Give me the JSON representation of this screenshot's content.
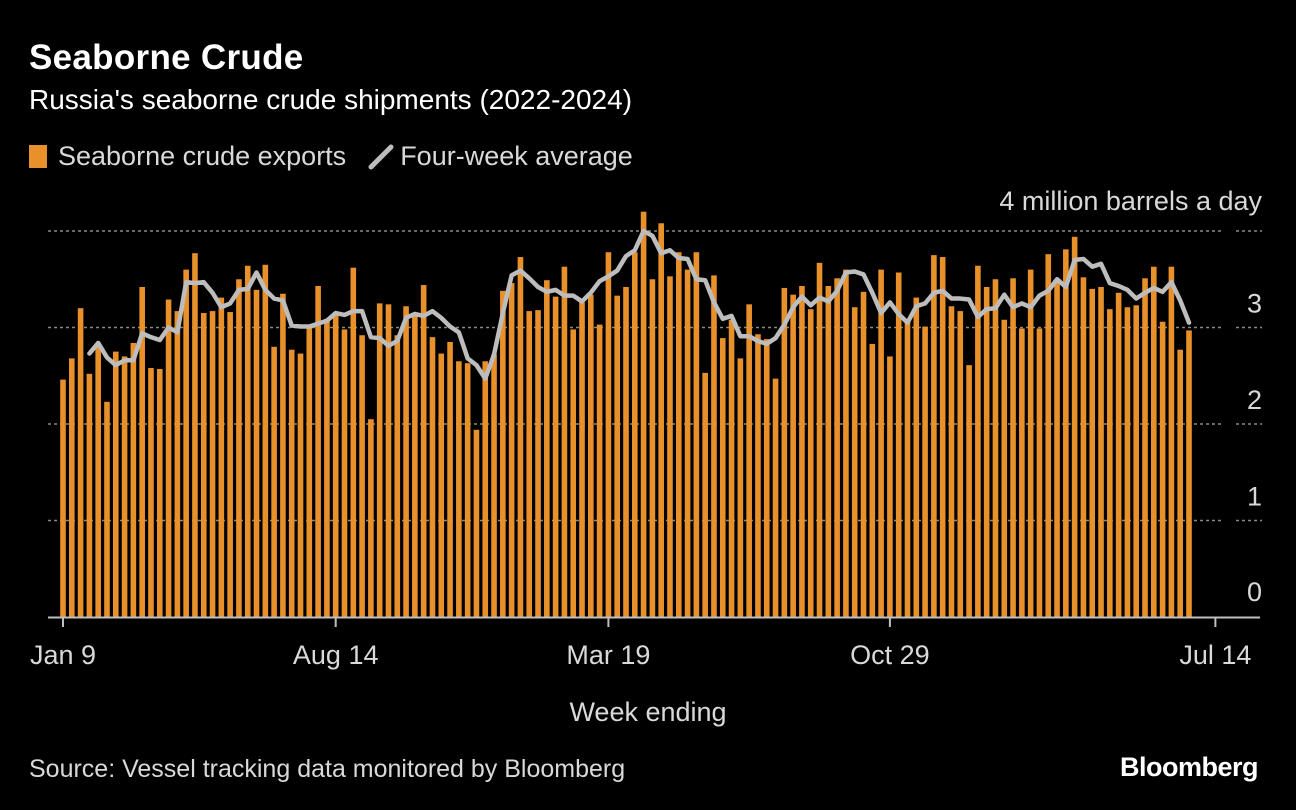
{
  "header": {
    "title": "Seaborne Crude",
    "subtitle": "Russia's seaborne crude shipments (2022-2024)"
  },
  "legend": {
    "bars_label": "Seaborne crude exports",
    "line_label": "Four-week average"
  },
  "colors": {
    "bar": "#e8902a",
    "line": "#bdbdbd",
    "grid": "#8a8a8a",
    "axis": "#bfbfbf",
    "text": "#d9d9d9"
  },
  "footer": {
    "source": "Source: Vessel tracking data monitored by Bloomberg",
    "brand": "Bloomberg"
  },
  "chart_data": {
    "type": "bar",
    "title": "Seaborne Crude",
    "subtitle": "Russia's seaborne crude shipments (2022-2024)",
    "xlabel": "Week ending",
    "ylabel": "4 million barrels a day",
    "unit_label": "4 million barrels a day",
    "ylim": [
      0,
      4
    ],
    "yticks": [
      0,
      1,
      2,
      3
    ],
    "grid": true,
    "legend_position": "top-left",
    "x_tick_labels": [
      {
        "label": "Jan 9",
        "week_index": 0
      },
      {
        "label": "Aug 14",
        "week_index": 31
      },
      {
        "label": "Mar 19",
        "week_index": 62
      },
      {
        "label": "Oct 29",
        "week_index": 94
      },
      {
        "label": "Jul 14",
        "week_index": 131
      }
    ],
    "series": [
      {
        "name": "Seaborne crude exports",
        "kind": "bar",
        "values": [
          2.46,
          2.68,
          3.2,
          2.52,
          2.8,
          2.23,
          2.75,
          2.7,
          2.84,
          3.42,
          2.58,
          2.57,
          3.29,
          3.17,
          3.6,
          3.77,
          3.15,
          3.17,
          3.31,
          3.16,
          3.5,
          3.64,
          3.39,
          3.65,
          2.8,
          3.35,
          2.77,
          2.73,
          3.0,
          3.43,
          3.09,
          3.16,
          2.98,
          3.62,
          2.92,
          2.05,
          3.25,
          3.24,
          2.92,
          3.22,
          3.14,
          3.44,
          2.9,
          2.73,
          2.85,
          2.65,
          2.63,
          1.94,
          2.65,
          2.72,
          3.38,
          3.46,
          3.73,
          3.17,
          3.18,
          3.49,
          3.32,
          3.63,
          2.98,
          3.26,
          3.34,
          3.03,
          3.78,
          3.33,
          3.42,
          3.78,
          4.2,
          3.5,
          4.08,
          3.53,
          3.78,
          3.6,
          3.78,
          2.53,
          3.54,
          2.89,
          3.08,
          2.68,
          3.24,
          2.93,
          2.88,
          2.47,
          3.41,
          3.34,
          3.43,
          3.19,
          3.67,
          3.43,
          3.51,
          3.6,
          3.21,
          3.37,
          2.83,
          3.6,
          2.7,
          3.57,
          3.07,
          3.31,
          3.01,
          3.75,
          3.73,
          3.22,
          3.17,
          2.61,
          3.64,
          3.42,
          3.5,
          3.08,
          3.51,
          2.99,
          3.6,
          2.99,
          3.76,
          3.47,
          3.81,
          3.94,
          3.52,
          3.4,
          3.42,
          3.19,
          3.36,
          3.21,
          3.23,
          3.51,
          3.63,
          3.06,
          3.63,
          2.77,
          2.97
        ]
      },
      {
        "name": "Four-week average",
        "kind": "line",
        "start_index": 3,
        "values": [
          2.73,
          2.84,
          2.69,
          2.61,
          2.66,
          2.66,
          2.94,
          2.9,
          2.87,
          3.0,
          2.95,
          3.47,
          3.46,
          3.47,
          3.36,
          3.21,
          3.25,
          3.39,
          3.4,
          3.57,
          3.39,
          3.3,
          3.28,
          3.02,
          3.01,
          3.01,
          3.04,
          3.07,
          3.15,
          3.13,
          3.17,
          3.17,
          2.9,
          2.89,
          2.81,
          2.86,
          3.1,
          3.14,
          3.12,
          3.17,
          3.1,
          3.01,
          2.95,
          2.68,
          2.61,
          2.47,
          2.72,
          3.15,
          3.54,
          3.59,
          3.51,
          3.42,
          3.37,
          3.39,
          3.33,
          3.33,
          3.27,
          3.36,
          3.48,
          3.53,
          3.59,
          3.74,
          3.8,
          4.0,
          3.95,
          3.77,
          3.8,
          3.72,
          3.71,
          3.5,
          3.49,
          3.26,
          3.09,
          3.12,
          2.91,
          2.91,
          2.86,
          2.83,
          2.89,
          3.03,
          3.21,
          3.32,
          3.23,
          3.31,
          3.27,
          3.38,
          3.57,
          3.58,
          3.55,
          3.36,
          3.15,
          3.26,
          3.14,
          3.05,
          3.22,
          3.25,
          3.36,
          3.38,
          3.3,
          3.3,
          3.29,
          3.11,
          3.19,
          3.2,
          3.34,
          3.21,
          3.25,
          3.21,
          3.33,
          3.38,
          3.5,
          3.42,
          3.7,
          3.71,
          3.63,
          3.66,
          3.46,
          3.43,
          3.39,
          3.3,
          3.36,
          3.41,
          3.37,
          3.47,
          3.28,
          3.05
        ]
      }
    ]
  }
}
